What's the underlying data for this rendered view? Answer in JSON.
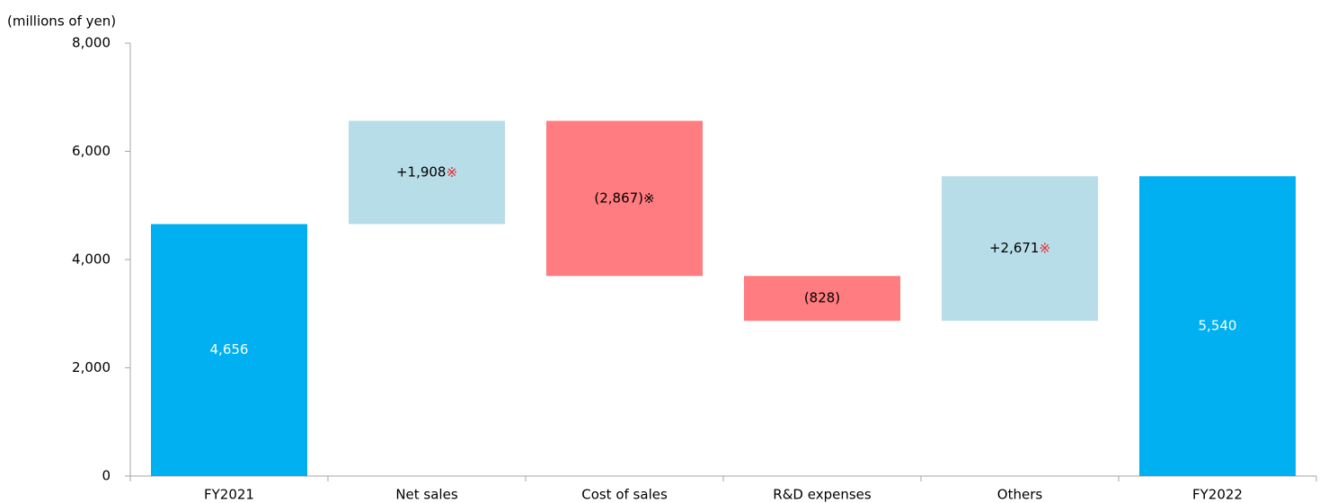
{
  "chart_data": {
    "type": "waterfall",
    "y_axis_label": "(millions of yen)",
    "categories": [
      "FY2021",
      "Net sales",
      "Cost of sales",
      "R&D expenses",
      "Others",
      "FY2022"
    ],
    "measure": [
      "total",
      "relative",
      "relative",
      "relative",
      "relative",
      "total"
    ],
    "values": [
      4656,
      1908,
      -2867,
      -828,
      2671,
      5540
    ],
    "value_labels": [
      "4,656",
      "+1,908※",
      "(2,867)※",
      "(828)",
      "+2,671※",
      "5,540"
    ],
    "note_mark_colors": [
      null,
      "#e8262b",
      "#000000",
      null,
      "#e8262b",
      null
    ],
    "colors": {
      "total": "#00b0f0",
      "increase": "#b7dde8",
      "decrease": "#ff7c80"
    },
    "label_colors": {
      "total": "#ffffff",
      "increase": "#000000",
      "decrease": "#000000"
    },
    "ylim": [
      0,
      8000
    ],
    "yticks": [
      0,
      {
        "value": 2000,
        "label": "2,000"
      },
      {
        "value": 4000,
        "label": "4,000"
      },
      {
        "value": 6000,
        "label": "6,000"
      },
      {
        "value": 8000,
        "label": "8,000"
      }
    ],
    "grid": false
  }
}
